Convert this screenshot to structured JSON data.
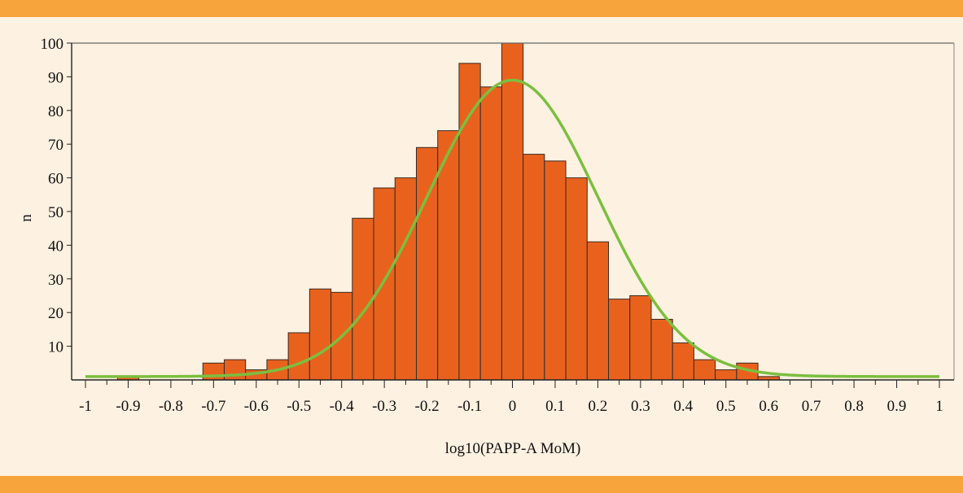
{
  "chart_data": {
    "type": "bar",
    "title": "",
    "xlabel": "log10(PAPP-A MoM)",
    "ylabel": "n",
    "xlim": [
      -1,
      1
    ],
    "ylim": [
      0,
      100
    ],
    "grid": false,
    "bin_width": 0.05,
    "x_ticks": [
      "-1",
      "-0.9",
      "-0.8",
      "-0.7",
      "-0.6",
      "-0.5",
      "-0.4",
      "-0.3",
      "-0.2",
      "-0.1",
      "0",
      "0.1",
      "0.2",
      "0.3",
      "0.4",
      "0.5",
      "0.6",
      "0.7",
      "0.8",
      "0.9",
      "1"
    ],
    "y_ticks": [
      "10",
      "20",
      "30",
      "40",
      "50",
      "60",
      "70",
      "80",
      "90",
      "100"
    ],
    "bins": [
      {
        "x": -0.95,
        "value": 0
      },
      {
        "x": -0.9,
        "value": 1
      },
      {
        "x": -0.85,
        "value": 0
      },
      {
        "x": -0.8,
        "value": 0
      },
      {
        "x": -0.75,
        "value": 0
      },
      {
        "x": -0.7,
        "value": 5
      },
      {
        "x": -0.65,
        "value": 6
      },
      {
        "x": -0.6,
        "value": 3
      },
      {
        "x": -0.55,
        "value": 6
      },
      {
        "x": -0.5,
        "value": 14
      },
      {
        "x": -0.45,
        "value": 27
      },
      {
        "x": -0.4,
        "value": 26
      },
      {
        "x": -0.35,
        "value": 48
      },
      {
        "x": -0.3,
        "value": 57
      },
      {
        "x": -0.25,
        "value": 60
      },
      {
        "x": -0.2,
        "value": 69
      },
      {
        "x": -0.15,
        "value": 74
      },
      {
        "x": -0.1,
        "value": 94
      },
      {
        "x": -0.05,
        "value": 87
      },
      {
        "x": 0.0,
        "value": 100
      },
      {
        "x": 0.05,
        "value": 67
      },
      {
        "x": 0.1,
        "value": 65
      },
      {
        "x": 0.15,
        "value": 60
      },
      {
        "x": 0.2,
        "value": 41
      },
      {
        "x": 0.25,
        "value": 24
      },
      {
        "x": 0.3,
        "value": 25
      },
      {
        "x": 0.35,
        "value": 18
      },
      {
        "x": 0.4,
        "value": 11
      },
      {
        "x": 0.45,
        "value": 6
      },
      {
        "x": 0.5,
        "value": 3
      },
      {
        "x": 0.55,
        "value": 5
      },
      {
        "x": 0.6,
        "value": 1
      },
      {
        "x": 0.65,
        "value": 0
      },
      {
        "x": 0.7,
        "value": 0
      },
      {
        "x": 0.75,
        "value": 0
      },
      {
        "x": 0.8,
        "value": 0
      },
      {
        "x": 0.85,
        "value": 0
      },
      {
        "x": 0.9,
        "value": 0
      },
      {
        "x": 0.95,
        "value": 0
      }
    ],
    "fit_curve": {
      "type": "normal",
      "mean": 0.0,
      "sd": 0.2,
      "peak": 89,
      "baseline": 1
    },
    "colors": {
      "bar_fill": "#e8621e",
      "bar_stroke": "#3a2a20",
      "curve": "#7bbf3f",
      "background": "#fdf1e1",
      "band": "#f7a43c"
    }
  }
}
